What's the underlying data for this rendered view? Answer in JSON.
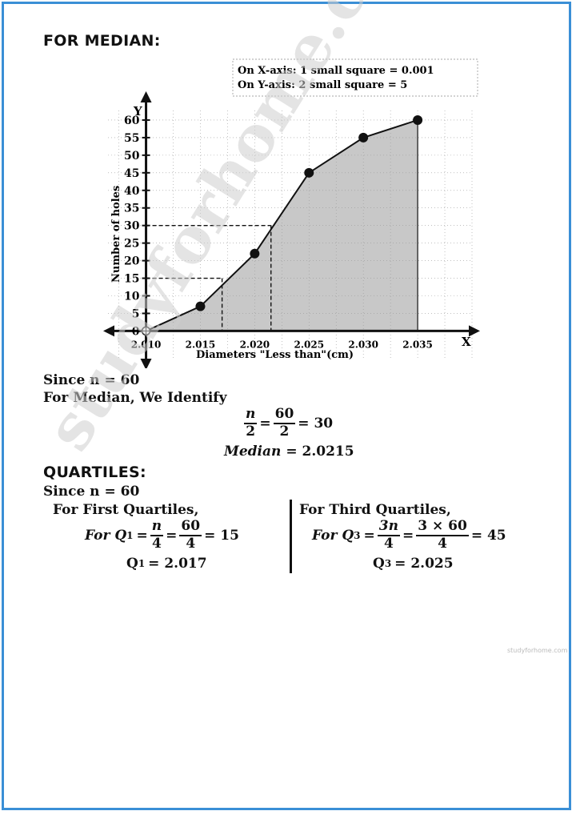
{
  "median_section": {
    "heading": "FOR MEDIAN:",
    "since_n": "Since n = 60",
    "identify": "For Median, We Identify",
    "n_over_2": {
      "num": "n",
      "den": "2",
      "num2": "60",
      "den2": "2",
      "result": "= 30"
    },
    "median_label": "Median",
    "median_value": "= 2.0215"
  },
  "quartiles_section": {
    "heading": "QUARTILES:",
    "since_n": "Since n = 60",
    "first": {
      "label": "For First Quartiles,",
      "for_text": "For Q",
      "sub": "1",
      "frac1": {
        "num": "n",
        "den": "4"
      },
      "frac2": {
        "num": "60",
        "den": "4"
      },
      "result": "= 15",
      "q_value": "= 2.017"
    },
    "third": {
      "label": "For Third Quartiles,",
      "for_text": "For Q",
      "sub": "3",
      "frac1": {
        "num": "3n",
        "den": "4"
      },
      "frac2": {
        "num": "3 × 60",
        "den": "4"
      },
      "result": "= 45",
      "q_value": "= 2.025"
    }
  },
  "watermark": "studyforhome.com",
  "watermark_small": "studyforhome.com",
  "chart_data": {
    "type": "line",
    "scale_note_x": "On X-axis: 1 small square = 0.001",
    "scale_note_y": "On Y-axis:  2 small square = 5",
    "xlabel": "Diameters \"Less than\"(cm)",
    "ylabel": "Number of holes",
    "x_axis_letter": "X",
    "y_axis_letter": "Y",
    "x_ticks": [
      "2.010",
      "2.015",
      "2.020",
      "2.025",
      "2.030",
      "2.035"
    ],
    "y_ticks": [
      "0",
      "5",
      "10",
      "15",
      "20",
      "25",
      "30",
      "35",
      "40",
      "45",
      "50",
      "55",
      "60"
    ],
    "xlim": [
      2.0065,
      2.04
    ],
    "ylim": [
      -1.5,
      65
    ],
    "series": [
      {
        "x": [
          2.01,
          2.015,
          2.02,
          2.025,
          2.03,
          2.035
        ],
        "y": [
          0,
          7,
          22,
          45,
          55,
          60
        ]
      }
    ],
    "reference_lines": [
      {
        "y": 30,
        "x": 2.0215
      },
      {
        "y": 15,
        "x": 2.017
      }
    ],
    "shaded_area": true,
    "grid": true
  }
}
